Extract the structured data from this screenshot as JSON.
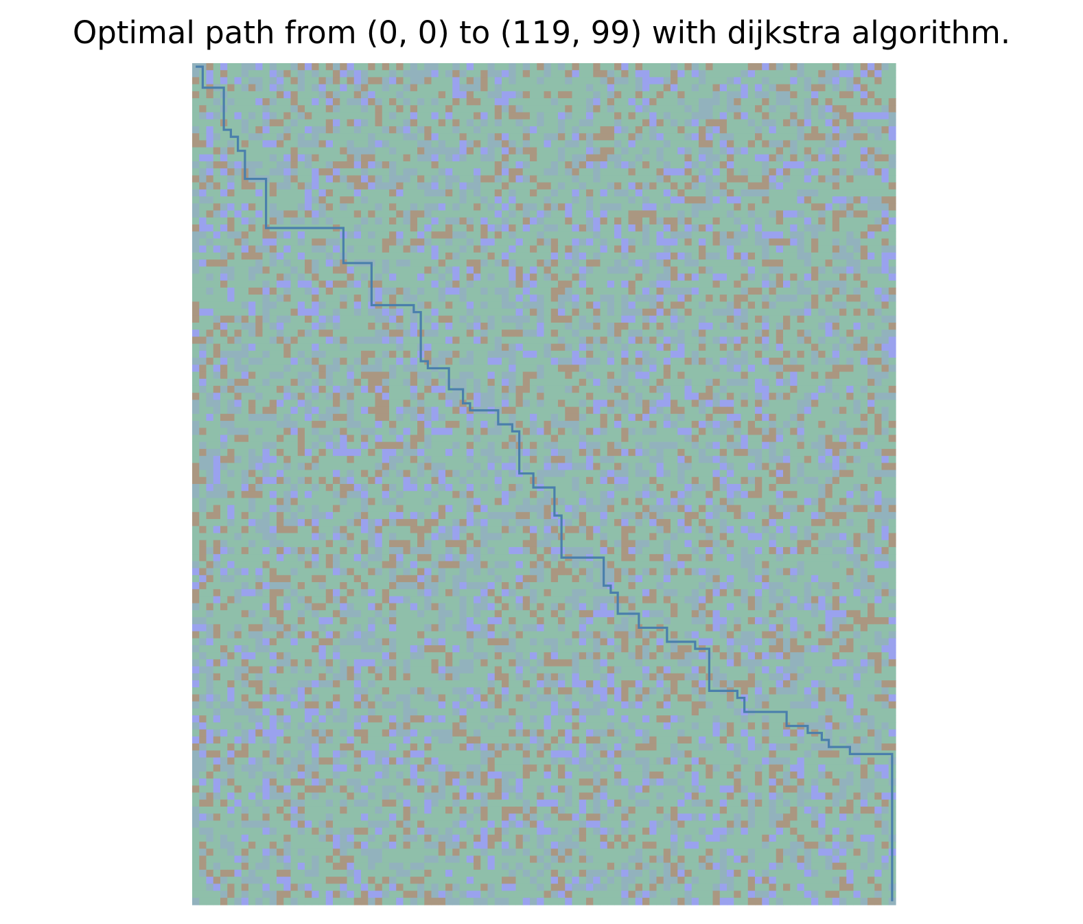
{
  "chart_data": {
    "type": "heatmap",
    "title": "Optimal path from (0, 0) to (119, 99) with dijkstra algorithm.",
    "xlabel": "",
    "ylabel": "",
    "grid": false,
    "axes_visible": false,
    "terrain": {
      "cols": 100,
      "rows": 120,
      "cell_classes": [
        "green",
        "blue-grey",
        "brown",
        "periwinkle"
      ],
      "colors": {
        "green": "#8fbfaa",
        "blue-grey": "#92b2bd",
        "brown": "#aa9781",
        "periwinkle": "#9aa2ee"
      },
      "class_fractions": {
        "green": 0.52,
        "blue-grey": 0.22,
        "brown": 0.16,
        "periwinkle": 0.1
      }
    },
    "path": {
      "algorithm": "dijkstra",
      "start": [
        0,
        0
      ],
      "end": [
        119,
        99
      ],
      "color": "#4a7fac",
      "vertices": [
        [
          0,
          0
        ],
        [
          0,
          1
        ],
        [
          3,
          1
        ],
        [
          3,
          4
        ],
        [
          9,
          4
        ],
        [
          9,
          5
        ],
        [
          10,
          5
        ],
        [
          10,
          6
        ],
        [
          12,
          6
        ],
        [
          12,
          7
        ],
        [
          16,
          7
        ],
        [
          16,
          10
        ],
        [
          23,
          10
        ],
        [
          23,
          21
        ],
        [
          28,
          21
        ],
        [
          28,
          25
        ],
        [
          34,
          25
        ],
        [
          34,
          31
        ],
        [
          35,
          31
        ],
        [
          35,
          32
        ],
        [
          42,
          32
        ],
        [
          42,
          33
        ],
        [
          43,
          33
        ],
        [
          43,
          36
        ],
        [
          46,
          36
        ],
        [
          46,
          38
        ],
        [
          48,
          38
        ],
        [
          48,
          39
        ],
        [
          49,
          39
        ],
        [
          49,
          43
        ],
        [
          51,
          43
        ],
        [
          51,
          45
        ],
        [
          52,
          45
        ],
        [
          52,
          46
        ],
        [
          58,
          46
        ],
        [
          58,
          48
        ],
        [
          60,
          48
        ],
        [
          60,
          51
        ],
        [
          64,
          51
        ],
        [
          64,
          52
        ],
        [
          70,
          52
        ],
        [
          70,
          58
        ],
        [
          74,
          58
        ],
        [
          74,
          59
        ],
        [
          75,
          59
        ],
        [
          75,
          60
        ],
        [
          78,
          60
        ],
        [
          78,
          63
        ],
        [
          80,
          63
        ],
        [
          80,
          67
        ],
        [
          82,
          67
        ],
        [
          82,
          71
        ],
        [
          83,
          71
        ],
        [
          83,
          73
        ],
        [
          89,
          73
        ],
        [
          89,
          77
        ],
        [
          90,
          77
        ],
        [
          90,
          78
        ],
        [
          92,
          78
        ],
        [
          92,
          84
        ],
        [
          94,
          84
        ],
        [
          94,
          87
        ],
        [
          95,
          87
        ],
        [
          95,
          89
        ],
        [
          96,
          89
        ],
        [
          96,
          90
        ],
        [
          97,
          90
        ],
        [
          97,
          93
        ],
        [
          98,
          93
        ],
        [
          98,
          95
        ],
        [
          98,
          99
        ],
        [
          119,
          99
        ]
      ]
    }
  }
}
